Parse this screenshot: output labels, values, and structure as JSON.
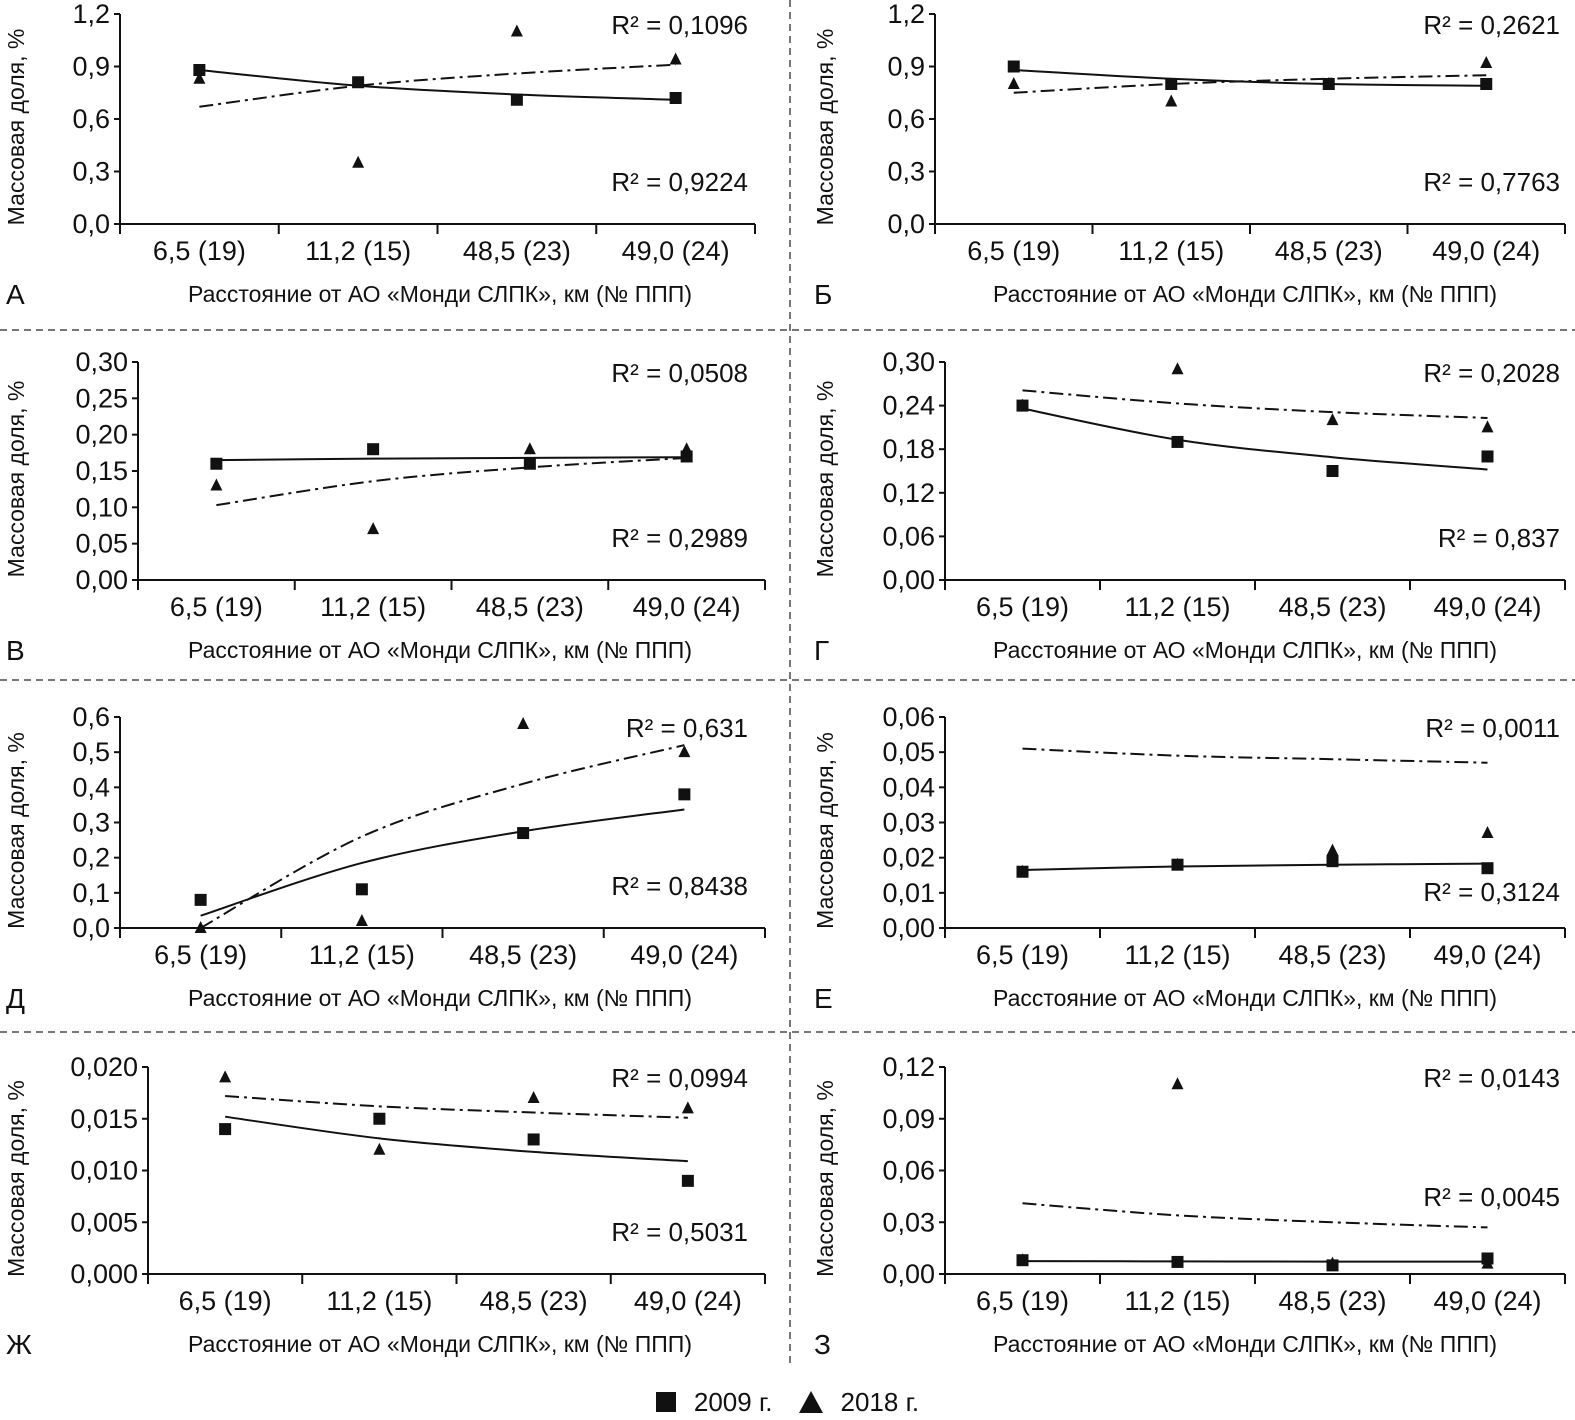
{
  "figure": {
    "legend": [
      {
        "label": "2009 г.",
        "marker": "square"
      },
      {
        "label": "2018 г.",
        "marker": "triangle"
      }
    ]
  },
  "chart_data": [
    {
      "panel": "А",
      "type": "scatter",
      "ylabel": "Массовая доля, %",
      "xlabel": "Расстояние от АО «Монди СЛПК», км (№ ППП)",
      "categories": [
        "6,5 (19)",
        "11,2 (15)",
        "48,5 (23)",
        "49,0 (24)"
      ],
      "ylim": [
        0,
        1.2
      ],
      "yticks": [
        "0,0",
        "0,3",
        "0,6",
        "0,9",
        "1,2"
      ],
      "series": [
        {
          "name": "2009 г.",
          "marker": "square",
          "values": [
            0.88,
            0.81,
            0.71,
            0.72
          ],
          "trend": [
            0.88,
            0.79,
            0.74,
            0.71
          ],
          "trend_style": "solid",
          "r2": "R² = 0,9224"
        },
        {
          "name": "2018 г.",
          "marker": "triangle",
          "values": [
            0.83,
            0.35,
            1.1,
            0.94
          ],
          "trend": [
            0.67,
            0.79,
            0.86,
            0.91
          ],
          "trend_style": "dashdot",
          "r2": "R² = 0,1096"
        }
      ]
    },
    {
      "panel": "Б",
      "type": "scatter",
      "ylabel": "Массовая доля, %",
      "xlabel": "Расстояние от АО «Монди СЛПК», км (№ ППП)",
      "categories": [
        "6,5 (19)",
        "11,2 (15)",
        "48,5 (23)",
        "49,0 (24)"
      ],
      "ylim": [
        0,
        1.2
      ],
      "yticks": [
        "0,0",
        "0,3",
        "0,6",
        "0,9",
        "1,2"
      ],
      "series": [
        {
          "name": "2009 г.",
          "marker": "square",
          "values": [
            0.9,
            0.8,
            0.8,
            0.8
          ],
          "trend": [
            0.88,
            0.83,
            0.8,
            0.79
          ],
          "trend_style": "solid",
          "r2": "R² = 0,7763"
        },
        {
          "name": "2018 г.",
          "marker": "triangle",
          "values": [
            0.8,
            0.7,
            0.8,
            0.92
          ],
          "trend": [
            0.75,
            0.8,
            0.83,
            0.85
          ],
          "trend_style": "dashdot",
          "r2": "R² = 0,2621"
        }
      ]
    },
    {
      "panel": "В",
      "type": "scatter",
      "ylabel": "Массовая доля, %",
      "xlabel": "Расстояние от АО «Монди СЛПК», км (№ ППП)",
      "categories": [
        "6,5 (19)",
        "11,2 (15)",
        "48,5 (23)",
        "49,0 (24)"
      ],
      "ylim": [
        0,
        0.3
      ],
      "yticks": [
        "0,00",
        "0,05",
        "0,10",
        "0,15",
        "0,20",
        "0,25",
        "0,30"
      ],
      "series": [
        {
          "name": "2009 г.",
          "marker": "square",
          "values": [
            0.16,
            0.18,
            0.16,
            0.17
          ],
          "trend": [
            0.165,
            0.167,
            0.168,
            0.169
          ],
          "trend_style": "solid",
          "r2": "R² = 0,2989"
        },
        {
          "name": "2018 г.",
          "marker": "triangle",
          "values": [
            0.13,
            0.07,
            0.18,
            0.18
          ],
          "trend": [
            0.103,
            0.136,
            0.155,
            0.168
          ],
          "trend_style": "dashdot",
          "r2": "R² = 0,0508"
        }
      ]
    },
    {
      "panel": "Г",
      "type": "scatter",
      "ylabel": "Массовая доля, %",
      "xlabel": "Расстояние от АО «Монди СЛПК», км (№ ППП)",
      "categories": [
        "6,5 (19)",
        "11,2 (15)",
        "48,5 (23)",
        "49,0 (24)"
      ],
      "ylim": [
        0,
        0.3
      ],
      "yticks": [
        "0,00",
        "0,06",
        "0,12",
        "0,18",
        "0,24",
        "0,30"
      ],
      "series": [
        {
          "name": "2009 г.",
          "marker": "square",
          "values": [
            0.24,
            0.19,
            0.15,
            0.17
          ],
          "trend": [
            0.236,
            0.193,
            0.169,
            0.152
          ],
          "trend_style": "solid",
          "r2": "R² = 0,837"
        },
        {
          "name": "2018 г.",
          "marker": "triangle",
          "values": [
            0.24,
            0.29,
            0.22,
            0.21
          ],
          "trend": [
            0.261,
            0.243,
            0.231,
            0.223
          ],
          "trend_style": "dashdot",
          "r2": "R² = 0,2028"
        }
      ]
    },
    {
      "panel": "Д",
      "type": "scatter",
      "ylabel": "Массовая доля, %",
      "xlabel": "Расстояние от АО «Монди СЛПК», км (№ ППП)",
      "categories": [
        "6,5 (19)",
        "11,2 (15)",
        "48,5 (23)",
        "49,0 (24)"
      ],
      "ylim": [
        0,
        0.6
      ],
      "yticks": [
        "0,0",
        "0,1",
        "0,2",
        "0,3",
        "0,4",
        "0,5",
        "0,6"
      ],
      "series": [
        {
          "name": "2009 г.",
          "marker": "square",
          "values": [
            0.08,
            0.11,
            0.27,
            0.38
          ],
          "trend": [
            0.035,
            0.185,
            0.275,
            0.337
          ],
          "trend_style": "solid",
          "r2": "R² = 0,8438"
        },
        {
          "name": "2018 г.",
          "marker": "triangle",
          "values": [
            0.0,
            0.02,
            0.58,
            0.5
          ],
          "trend": [
            0.0,
            0.26,
            0.41,
            0.52
          ],
          "trend_style": "dashdot",
          "r2": "R² = 0,631"
        }
      ]
    },
    {
      "panel": "Е",
      "type": "scatter",
      "ylabel": "Массовая доля, %",
      "xlabel": "Расстояние от АО «Монди СЛПК», км (№ ППП)",
      "categories": [
        "6,5 (19)",
        "11,2 (15)",
        "48,5 (23)",
        "49,0 (24)"
      ],
      "ylim": [
        0,
        0.06
      ],
      "yticks": [
        "0,00",
        "0,01",
        "0,02",
        "0,03",
        "0,04",
        "0,05",
        "0,06"
      ],
      "series": [
        {
          "name": "2009 г.",
          "marker": "square",
          "values": [
            0.016,
            0.018,
            0.019,
            0.017
          ],
          "trend": [
            0.0165,
            0.0175,
            0.018,
            0.0183
          ],
          "trend_style": "solid",
          "r2": "R² = 0,3124"
        },
        {
          "name": "2018 г.",
          "marker": "triangle",
          "values": [
            0.016,
            0.018,
            0.022,
            0.027
          ],
          "trend": [
            0.051,
            0.049,
            0.048,
            0.047
          ],
          "trend_style": "dashdot",
          "r2": "R² = 0,0011"
        }
      ]
    },
    {
      "panel": "Ж",
      "type": "scatter",
      "ylabel": "Массовая доля, %",
      "xlabel": "Расстояние от АО «Монди СЛПК», км (№ ППП)",
      "categories": [
        "6,5 (19)",
        "11,2 (15)",
        "48,5 (23)",
        "49,0 (24)"
      ],
      "ylim": [
        0,
        0.02
      ],
      "yticks": [
        "0,000",
        "0,005",
        "0,010",
        "0,015",
        "0,020"
      ],
      "series": [
        {
          "name": "2009 г.",
          "marker": "square",
          "values": [
            0.014,
            0.015,
            0.013,
            0.009
          ],
          "trend": [
            0.0152,
            0.0131,
            0.0118,
            0.0109
          ],
          "trend_style": "solid",
          "r2": "R² = 0,5031"
        },
        {
          "name": "2018 г.",
          "marker": "triangle",
          "values": [
            0.019,
            0.012,
            0.017,
            0.016
          ],
          "trend": [
            0.0172,
            0.0162,
            0.0156,
            0.0151
          ],
          "trend_style": "dashdot",
          "r2": "R² = 0,0994"
        }
      ]
    },
    {
      "panel": "З",
      "type": "scatter",
      "ylabel": "Массовая доля, %",
      "xlabel": "Расстояние от АО «Монди СЛПК», км (№ ППП)",
      "categories": [
        "6,5 (19)",
        "11,2 (15)",
        "48,5 (23)",
        "49,0 (24)"
      ],
      "ylim": [
        0,
        0.12
      ],
      "yticks": [
        "0,00",
        "0,03",
        "0,06",
        "0,09",
        "0,12"
      ],
      "series": [
        {
          "name": "2009 г.",
          "marker": "square",
          "values": [
            0.008,
            0.007,
            0.005,
            0.009
          ],
          "trend": [
            0.0075,
            0.0073,
            0.0072,
            0.0072
          ],
          "trend_style": "solid",
          "r2": "R² = 0,0045"
        },
        {
          "name": "2018 г.",
          "marker": "triangle",
          "values": [
            0.008,
            0.11,
            0.006,
            0.006
          ],
          "trend": [
            0.041,
            0.034,
            0.03,
            0.027
          ],
          "trend_style": "dashdot",
          "r2": "R² = 0,0143"
        }
      ]
    }
  ]
}
